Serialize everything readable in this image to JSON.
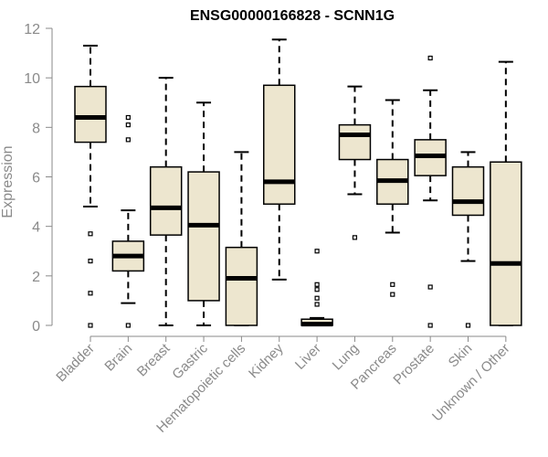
{
  "chart_data": {
    "type": "boxplot",
    "title": "ENSG00000166828 - SCNN1G",
    "ylabel": "Expression",
    "xlabel": "",
    "ylim": [
      0,
      12
    ],
    "yticks": [
      0,
      2,
      4,
      6,
      8,
      10,
      12
    ],
    "box_fill": "#ede6cf",
    "box_stroke": "#000000",
    "axis_color": "#8a8a8a",
    "categories": [
      "Bladder",
      "Brain",
      "Breast",
      "Gastric",
      "Hematopoietic cells",
      "Kidney",
      "Liver",
      "Lung",
      "Pancreas",
      "Prostate",
      "Skin",
      "Unknown / Other"
    ],
    "boxes": [
      {
        "category": "Bladder",
        "whisker_low": 4.8,
        "q1": 7.4,
        "median": 8.4,
        "q3": 9.65,
        "whisker_high": 11.3,
        "outliers": [
          3.7,
          2.6,
          1.3,
          0.0
        ]
      },
      {
        "category": "Brain",
        "whisker_low": 0.9,
        "q1": 2.2,
        "median": 2.8,
        "q3": 3.4,
        "whisker_high": 4.65,
        "outliers": [
          8.4,
          8.1,
          7.5,
          0.0
        ]
      },
      {
        "category": "Breast",
        "whisker_low": 0.0,
        "q1": 3.65,
        "median": 4.75,
        "q3": 6.4,
        "whisker_high": 10.0,
        "outliers": []
      },
      {
        "category": "Gastric",
        "whisker_low": 0.0,
        "q1": 1.0,
        "median": 4.05,
        "q3": 6.2,
        "whisker_high": 9.0,
        "outliers": []
      },
      {
        "category": "Hematopoietic cells",
        "whisker_low": 0.0,
        "q1": 0.0,
        "median": 1.9,
        "q3": 3.15,
        "whisker_high": 7.0,
        "outliers": []
      },
      {
        "category": "Kidney",
        "whisker_low": 1.85,
        "q1": 4.9,
        "median": 5.8,
        "q3": 9.7,
        "whisker_high": 11.55,
        "outliers": []
      },
      {
        "category": "Liver",
        "whisker_low": 0.0,
        "q1": 0.0,
        "median": 0.05,
        "q3": 0.25,
        "whisker_high": 0.3,
        "outliers": [
          3.0,
          1.65,
          1.45,
          1.1,
          0.85
        ]
      },
      {
        "category": "Lung",
        "whisker_low": 5.3,
        "q1": 6.7,
        "median": 7.7,
        "q3": 8.1,
        "whisker_high": 9.65,
        "outliers": [
          3.55
        ]
      },
      {
        "category": "Pancreas",
        "whisker_low": 3.75,
        "q1": 4.9,
        "median": 5.85,
        "q3": 6.7,
        "whisker_high": 9.1,
        "outliers": [
          1.65,
          1.25
        ]
      },
      {
        "category": "Prostate",
        "whisker_low": 5.05,
        "q1": 6.05,
        "median": 6.85,
        "q3": 7.5,
        "whisker_high": 9.5,
        "outliers": [
          10.8,
          1.55,
          0.0
        ]
      },
      {
        "category": "Skin",
        "whisker_low": 2.6,
        "q1": 4.45,
        "median": 5.0,
        "q3": 6.4,
        "whisker_high": 7.0,
        "outliers": [
          0.0
        ]
      },
      {
        "category": "Unknown / Other",
        "whisker_low": 0.0,
        "q1": 0.0,
        "median": 2.5,
        "q3": 6.6,
        "whisker_high": 10.65,
        "outliers": []
      }
    ]
  }
}
